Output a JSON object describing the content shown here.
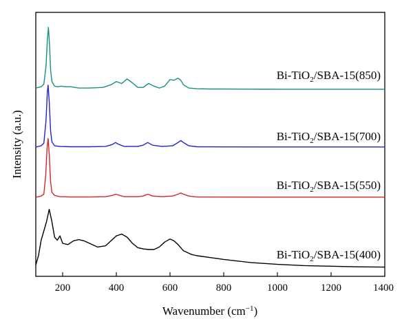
{
  "chart_data": {
    "type": "line",
    "title": "",
    "xlabel": "Wavenumber (cm",
    "xlabel_sup": "−1",
    "xlabel_close": ")",
    "ylabel": "Intensity (a.u.)",
    "xlim": [
      100,
      1400
    ],
    "xticks": [
      200,
      400,
      600,
      800,
      1000,
      1200,
      1400
    ],
    "yticks_shown": false,
    "grid": false,
    "legend": "inline labels",
    "series": [
      {
        "name": "Bi-TiO2/SBA-15(850)",
        "label_parts": [
          "Bi-TiO",
          "2",
          "/SBA-15(850)"
        ],
        "color": "#178F7F",
        "offset": 3,
        "x": [
          100,
          120,
          130,
          138,
          143,
          147,
          151,
          155,
          160,
          170,
          180,
          195,
          210,
          230,
          260,
          300,
          350,
          380,
          400,
          420,
          440,
          460,
          480,
          500,
          520,
          540,
          560,
          580,
          600,
          615,
          630,
          640,
          650,
          670,
          700,
          750,
          800,
          900,
          1000,
          1100,
          1200,
          1300,
          1400
        ],
        "y": [
          0.02,
          0.04,
          0.08,
          0.35,
          0.75,
          0.95,
          0.7,
          0.3,
          0.12,
          0.05,
          0.04,
          0.05,
          0.04,
          0.04,
          0.02,
          0.02,
          0.03,
          0.07,
          0.12,
          0.09,
          0.16,
          0.1,
          0.03,
          0.03,
          0.09,
          0.05,
          0.02,
          0.05,
          0.15,
          0.14,
          0.17,
          0.14,
          0.07,
          0.02,
          0.01,
          0.005,
          0.005,
          0.003,
          0.002,
          0.002,
          0.002,
          0.002,
          0.002
        ]
      },
      {
        "name": "Bi-TiO2/SBA-15(700)",
        "label_parts": [
          "Bi-TiO",
          "2",
          "/SBA-15(700)"
        ],
        "color": "#2222CC",
        "offset": 2,
        "x": [
          100,
          120,
          130,
          138,
          143,
          146,
          150,
          155,
          160,
          170,
          190,
          230,
          300,
          360,
          385,
          397,
          410,
          430,
          480,
          500,
          517,
          535,
          570,
          610,
          630,
          640,
          650,
          670,
          700,
          800,
          1000,
          1200,
          1400
        ],
        "y": [
          0.0,
          0.02,
          0.06,
          0.4,
          0.85,
          0.95,
          0.7,
          0.25,
          0.08,
          0.02,
          0.01,
          0.005,
          0.005,
          0.01,
          0.04,
          0.07,
          0.04,
          0.01,
          0.01,
          0.03,
          0.07,
          0.03,
          0.01,
          0.02,
          0.07,
          0.1,
          0.07,
          0.02,
          0.005,
          0.003,
          0.002,
          0.002,
          0.002
        ]
      },
      {
        "name": "Bi-TiO2/SBA-15(550)",
        "label_parts": [
          "Bi-TiO",
          "2",
          "/SBA-15(550)"
        ],
        "color": "#DD2222",
        "offset": 1,
        "x": [
          100,
          120,
          130,
          137,
          142,
          146,
          150,
          155,
          160,
          170,
          190,
          230,
          300,
          360,
          385,
          398,
          412,
          430,
          480,
          500,
          517,
          535,
          570,
          610,
          630,
          640,
          650,
          670,
          700,
          800,
          1000,
          1200,
          1400
        ],
        "y": [
          0.0,
          0.02,
          0.05,
          0.35,
          0.8,
          0.95,
          0.7,
          0.25,
          0.08,
          0.03,
          0.01,
          0.005,
          0.005,
          0.01,
          0.03,
          0.05,
          0.03,
          0.01,
          0.01,
          0.02,
          0.05,
          0.02,
          0.01,
          0.02,
          0.05,
          0.07,
          0.05,
          0.02,
          0.005,
          0.003,
          0.002,
          0.002,
          0.002
        ]
      },
      {
        "name": "Bi-TiO2/SBA-15(400)",
        "label_parts": [
          "Bi-TiO",
          "2",
          "/SBA-15(400)"
        ],
        "color": "#000000",
        "offset": 0,
        "x": [
          100,
          110,
          120,
          130,
          140,
          150,
          160,
          170,
          180,
          190,
          200,
          220,
          240,
          260,
          280,
          300,
          330,
          360,
          380,
          400,
          420,
          440,
          460,
          480,
          500,
          520,
          540,
          560,
          580,
          600,
          615,
          630,
          650,
          680,
          700,
          750,
          800,
          900,
          1000,
          1100,
          1200,
          1300,
          1400
        ],
        "y": [
          0.05,
          0.2,
          0.45,
          0.6,
          0.75,
          0.95,
          0.75,
          0.5,
          0.45,
          0.52,
          0.4,
          0.38,
          0.44,
          0.46,
          0.44,
          0.4,
          0.34,
          0.36,
          0.44,
          0.52,
          0.55,
          0.5,
          0.4,
          0.33,
          0.31,
          0.3,
          0.3,
          0.34,
          0.42,
          0.47,
          0.44,
          0.38,
          0.28,
          0.22,
          0.2,
          0.17,
          0.14,
          0.09,
          0.06,
          0.04,
          0.03,
          0.02,
          0.015
        ]
      }
    ]
  }
}
